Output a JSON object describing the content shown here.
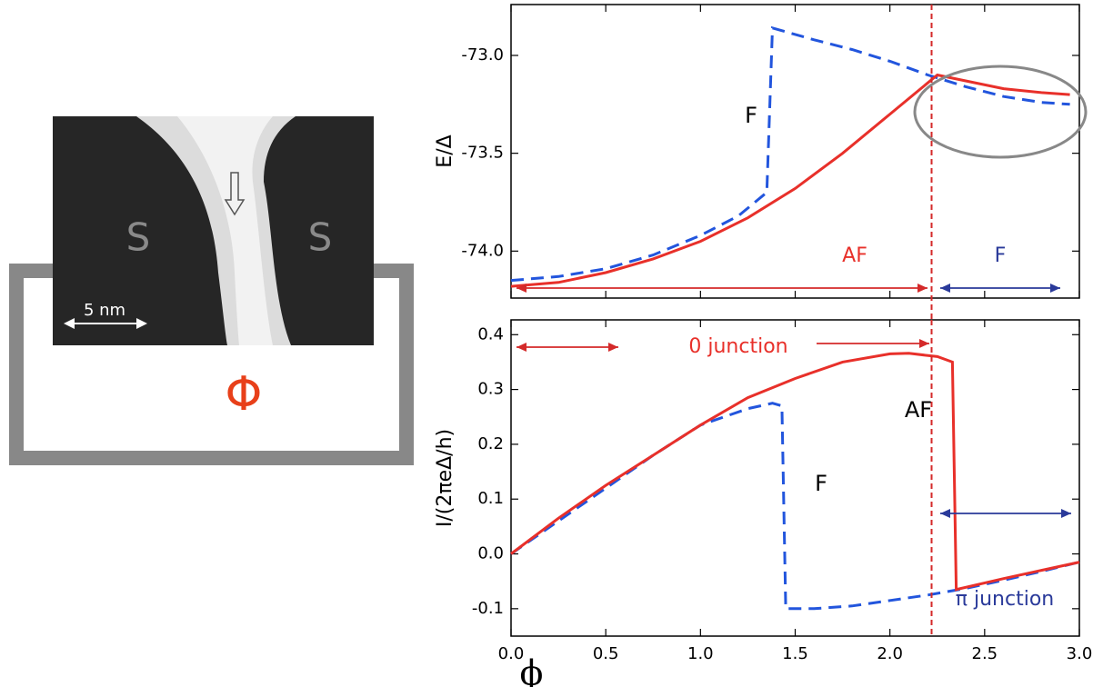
{
  "schematic": {
    "left_label": "S",
    "right_label": "S",
    "scale_label": "5 nm",
    "flux_label": "Φ"
  },
  "chart_data": [
    {
      "type": "line",
      "y_label": "E/Δ",
      "xlim": [
        0,
        3
      ],
      "ylim": [
        -74.24,
        -72.74
      ],
      "xticks": [
        0,
        0.5,
        1,
        1.5,
        2,
        2.5,
        3
      ],
      "xtick_labels": false,
      "yticks": [
        {
          "value": -73,
          "label": "-73.0"
        },
        {
          "value": -73.5,
          "label": "-73.5"
        },
        {
          "value": -74,
          "label": "-74.0"
        }
      ],
      "vline": 2.22,
      "vline_color": "#d42a2a",
      "series": [
        {
          "name": "F",
          "color": "#2255dd",
          "style": "dashed",
          "x": [
            0,
            0.25,
            0.5,
            0.75,
            1.0,
            1.2,
            1.35,
            1.38,
            1.6,
            1.8,
            2.0,
            2.2,
            2.4,
            2.6,
            2.8,
            2.95
          ],
          "values": [
            -74.15,
            -74.13,
            -74.09,
            -74.02,
            -73.92,
            -73.82,
            -73.7,
            -72.86,
            -72.92,
            -72.97,
            -73.03,
            -73.1,
            -73.16,
            -73.21,
            -73.24,
            -73.25
          ]
        },
        {
          "name": "AF",
          "color": "#e8302a",
          "style": "solid",
          "x": [
            0,
            0.25,
            0.5,
            0.75,
            1.0,
            1.25,
            1.5,
            1.75,
            2.0,
            2.25,
            2.4,
            2.6,
            2.8,
            2.95
          ],
          "values": [
            -74.18,
            -74.16,
            -74.11,
            -74.04,
            -73.95,
            -73.83,
            -73.68,
            -73.5,
            -73.3,
            -73.1,
            -73.13,
            -73.17,
            -73.19,
            -73.2
          ]
        }
      ],
      "annotations": [
        {
          "text": "F",
          "color": "#000000"
        },
        {
          "text": "AF",
          "color": "#e8302a"
        },
        {
          "text": "F",
          "color": "#2a3a9a"
        }
      ]
    },
    {
      "type": "line",
      "x_label": "ϕ",
      "y_label": "I/(2πeΔ/h)",
      "xlim": [
        0,
        3
      ],
      "ylim": [
        -0.15,
        0.427
      ],
      "xticks": [
        {
          "value": 0,
          "label": "0.0"
        },
        {
          "value": 0.5,
          "label": "0.5"
        },
        {
          "value": 1,
          "label": "1.0"
        },
        {
          "value": 1.5,
          "label": "1.5"
        },
        {
          "value": 2,
          "label": "2.0"
        },
        {
          "value": 2.5,
          "label": "2.5"
        },
        {
          "value": 3,
          "label": "3.0"
        }
      ],
      "xtick_labels": true,
      "yticks": [
        0.4,
        0.3,
        0.2,
        0.1,
        {
          "value": 0,
          "label": "0.0"
        },
        -0.1
      ],
      "vline": 2.22,
      "vline_color": "#d42a2a",
      "series": [
        {
          "name": "F",
          "color": "#2255dd",
          "style": "dashed",
          "x": [
            0,
            0.25,
            0.5,
            0.75,
            1.0,
            1.25,
            1.38,
            1.43,
            1.45,
            1.6,
            1.8,
            2.0,
            2.2,
            2.4,
            2.6,
            2.8,
            3.0
          ],
          "values": [
            0,
            0.06,
            0.12,
            0.18,
            0.235,
            0.265,
            0.275,
            0.27,
            -0.1,
            -0.1,
            -0.095,
            -0.085,
            -0.075,
            -0.063,
            -0.048,
            -0.032,
            -0.015
          ]
        },
        {
          "name": "AF",
          "color": "#e8302a",
          "style": "solid",
          "x": [
            0,
            0.25,
            0.5,
            0.75,
            1.0,
            1.25,
            1.5,
            1.75,
            2.0,
            2.1,
            2.25,
            2.33,
            2.35,
            2.6,
            2.8,
            3.0
          ],
          "values": [
            0,
            0.065,
            0.125,
            0.18,
            0.235,
            0.285,
            0.32,
            0.35,
            0.365,
            0.366,
            0.36,
            0.35,
            -0.065,
            -0.045,
            -0.03,
            -0.015
          ]
        }
      ],
      "annotations": [
        {
          "text": "0 junction",
          "color": "#e8302a"
        },
        {
          "text": "AF",
          "color": "#000000"
        },
        {
          "text": "F",
          "color": "#000000"
        },
        {
          "text": "π junction",
          "color": "#2a3a9a"
        }
      ]
    }
  ]
}
